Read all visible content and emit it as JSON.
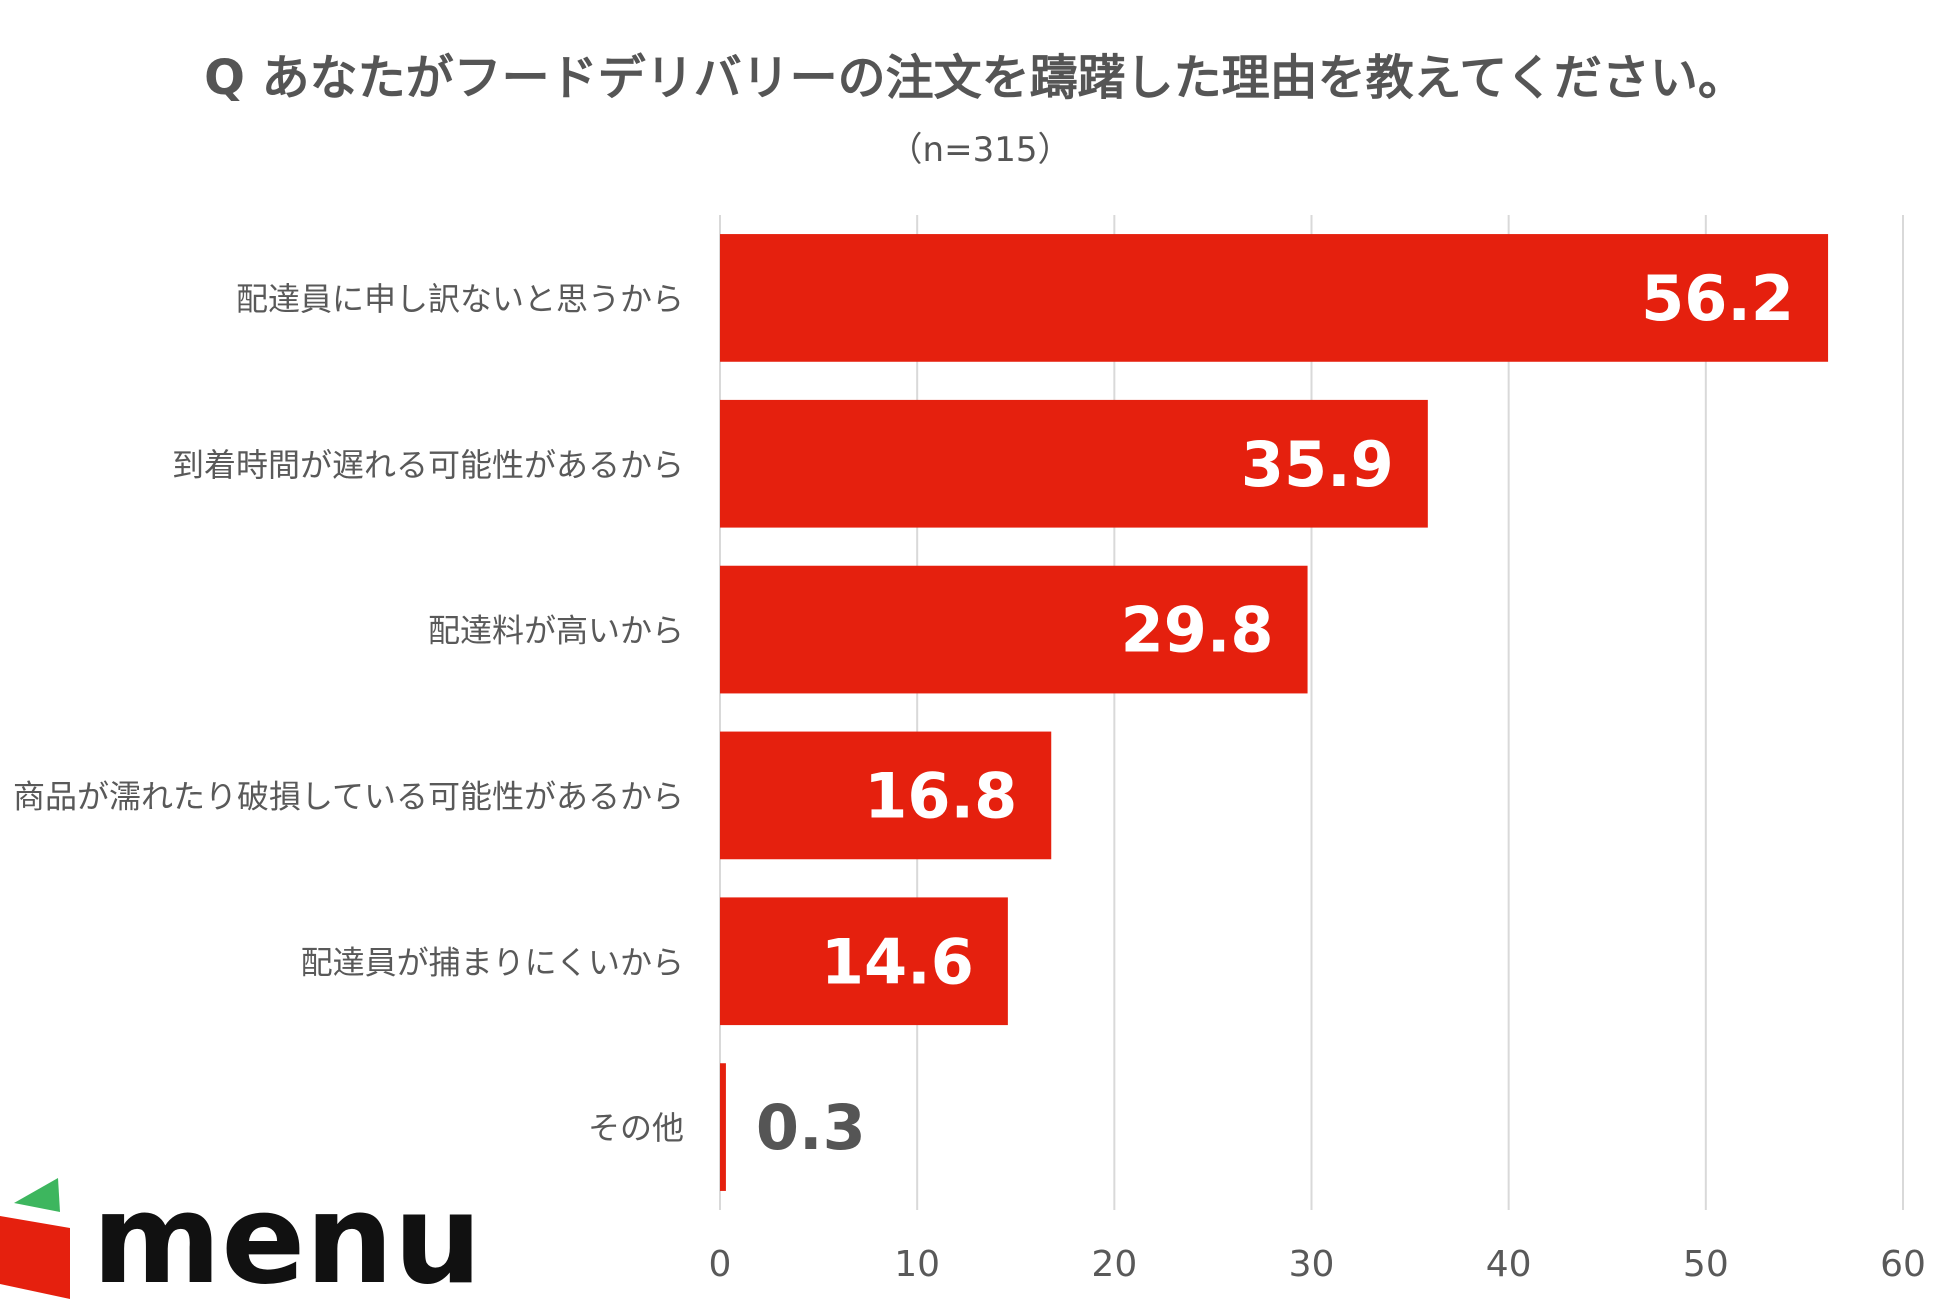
{
  "chart_data": {
    "type": "bar",
    "orientation": "horizontal",
    "title": "Q あなたがフードデリバリーの注文を躊躇した理由を教えてください。",
    "subtitle": "（n=315）",
    "categories": [
      "配達員に申し訳ないと思うから",
      "到着時間が遅れる可能性があるから",
      "配達料が高いから",
      "商品が濡れたり破損している可能性があるから",
      "配達員が捕まりにくいから",
      "その他"
    ],
    "values": [
      56.2,
      35.9,
      29.8,
      16.8,
      14.6,
      0.3
    ],
    "value_labels": [
      "56.2",
      "35.9",
      "29.8",
      "16.8",
      "14.6",
      "0.3"
    ],
    "xlim": [
      0,
      60
    ],
    "xticks": [
      0,
      10,
      20,
      30,
      40,
      50,
      60
    ],
    "xtick_labels": [
      "0",
      "10",
      "20",
      "30",
      "40",
      "50",
      "60"
    ],
    "grid": true,
    "bar_color": "#E5200E",
    "inside_label_color": "#FFFFFF",
    "outside_label_color": "#555555"
  },
  "logo": {
    "text": "menu",
    "colors": {
      "red": "#E5200E",
      "green": "#3DB65E",
      "text": "#111111"
    }
  }
}
